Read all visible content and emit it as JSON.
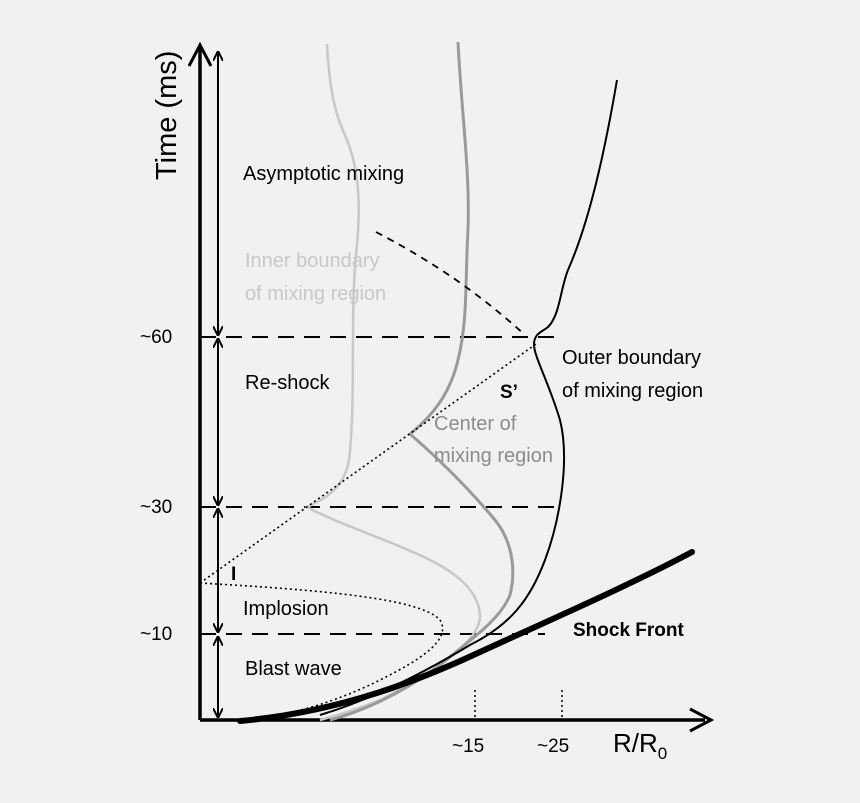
{
  "axes": {
    "y_label": "Time (ms)",
    "x_label_main": "R/R",
    "x_label_sub": "0",
    "y_ticks": [
      "~60",
      "~30",
      "~10"
    ],
    "x_ticks": [
      "~15",
      "~25"
    ]
  },
  "phases": {
    "asymptotic": "Asymptotic mixing",
    "reshock": "Re-shock",
    "implosion": "Implosion",
    "blast": "Blast wave"
  },
  "curve_labels": {
    "inner_line1": "Inner boundary",
    "inner_line2": "of mixing region",
    "outer_line1": "Outer boundary",
    "outer_line2": "of mixing region",
    "center_line1": "Center of",
    "center_line2": "mixing region",
    "s_prime": "S’",
    "i": "I",
    "shock_front": "Shock Front"
  },
  "colors": {
    "background": "#f1f1f1",
    "ink": "#000000",
    "inner_curve": "#c8c8c8",
    "center_curve": "#9a9a9a",
    "inner_label": "#c8c8c8",
    "center_label": "#8c8c8c"
  }
}
